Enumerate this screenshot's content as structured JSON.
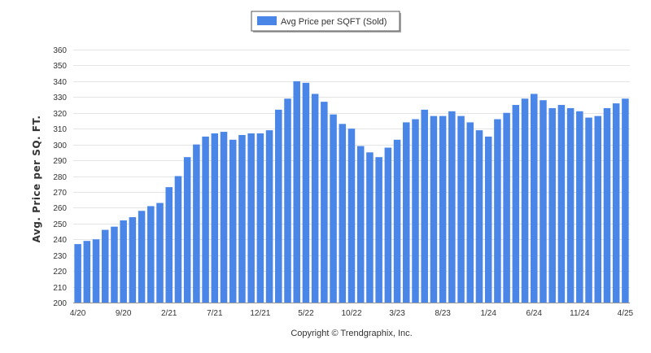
{
  "chart_data": {
    "type": "bar",
    "legend": {
      "label": "Avg Price per SQFT (Sold)",
      "position": "top-center"
    },
    "ylabel": "Avg. Price per SQ. FT.",
    "xlabel": "",
    "ylim": [
      200,
      360
    ],
    "yticks": [
      200,
      210,
      220,
      230,
      240,
      250,
      260,
      270,
      280,
      290,
      300,
      310,
      320,
      330,
      340,
      350,
      360
    ],
    "grid": true,
    "x_tick_labels": [
      {
        "index": 0,
        "label": "4/20"
      },
      {
        "index": 5,
        "label": "9/20"
      },
      {
        "index": 10,
        "label": "2/21"
      },
      {
        "index": 15,
        "label": "7/21"
      },
      {
        "index": 20,
        "label": "12/21"
      },
      {
        "index": 25,
        "label": "5/22"
      },
      {
        "index": 30,
        "label": "10/22"
      },
      {
        "index": 35,
        "label": "3/23"
      },
      {
        "index": 40,
        "label": "8/23"
      },
      {
        "index": 45,
        "label": "1/24"
      },
      {
        "index": 50,
        "label": "6/24"
      },
      {
        "index": 55,
        "label": "11/24"
      },
      {
        "index": 60,
        "label": "4/25"
      }
    ],
    "series": [
      {
        "values": [
          237,
          239,
          240,
          246,
          248,
          252,
          254,
          258,
          261,
          263,
          273,
          280,
          292,
          300,
          305,
          307,
          308,
          303,
          306,
          307,
          307,
          309,
          322,
          329,
          340,
          339,
          332,
          327,
          319,
          313,
          310,
          299,
          295,
          292,
          298,
          303,
          314,
          316,
          322,
          318,
          318,
          321,
          318,
          314,
          309,
          305,
          316,
          320,
          325,
          329,
          332,
          328,
          323,
          325,
          323,
          321,
          317,
          318,
          323,
          326,
          329
        ]
      }
    ],
    "bar_color": "#4a86e8"
  },
  "footer": {
    "copyright": "Copyright © Trendgraphix, Inc."
  }
}
